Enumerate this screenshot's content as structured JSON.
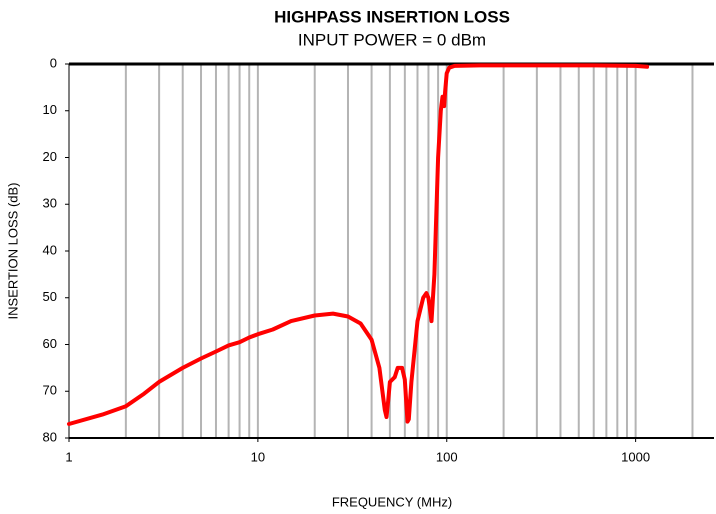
{
  "chart_data": {
    "type": "line",
    "title": "HIGHPASS INSERTION LOSS",
    "subtitle": "INPUT POWER = 0 dBm",
    "x_label": "FREQUENCY (MHz)",
    "y_label": "INSERTION LOSS (dB)",
    "x": [
      1,
      1.5,
      2,
      2.5,
      3,
      4,
      5,
      6,
      7,
      8,
      9,
      10,
      12,
      15,
      20,
      25,
      30,
      35,
      40,
      44,
      47,
      48,
      49,
      50,
      53,
      55,
      58,
      60,
      62,
      63,
      65,
      70,
      75,
      78,
      80,
      83,
      86,
      90,
      93,
      95,
      97,
      98,
      100,
      103,
      110,
      150,
      300,
      600,
      1000,
      1150
    ],
    "values": [
      77,
      75,
      73.2,
      70.5,
      68,
      65,
      63,
      61.5,
      60.2,
      59.5,
      58.5,
      57.8,
      56.8,
      55,
      53.8,
      53.4,
      54,
      55.5,
      59,
      65,
      74,
      75.5,
      72,
      68,
      67,
      65,
      65,
      67.5,
      76.5,
      76,
      68,
      55,
      50,
      49,
      50,
      55,
      45,
      20,
      10,
      7,
      9,
      6,
      2,
      0.8,
      0.4,
      0.3,
      0.3,
      0.3,
      0.4,
      0.6
    ],
    "color": "#ff0000",
    "xscale": "log",
    "xlim": [
      1,
      2600
    ],
    "xticks": [
      1,
      10,
      100,
      1000
    ],
    "xgrid": [
      2,
      3,
      4,
      5,
      6,
      7,
      8,
      9,
      10,
      20,
      30,
      40,
      50,
      60,
      70,
      80,
      90,
      100,
      200,
      300,
      400,
      500,
      600,
      700,
      800,
      900,
      1000,
      2000
    ],
    "ylim": [
      0,
      80
    ],
    "y_reversed": true,
    "yticks": [
      0,
      10,
      20,
      30,
      40,
      50,
      60,
      70,
      80
    ],
    "grid": true
  }
}
